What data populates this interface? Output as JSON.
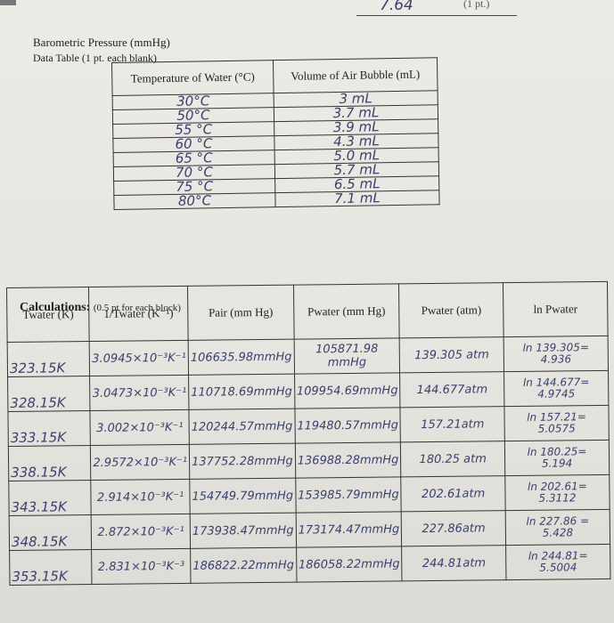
{
  "header": {
    "score": "7.64",
    "points": "(1 pt.)"
  },
  "section": {
    "title": "Barometric Pressure (mmHg)",
    "caption": "Data Table (1 pt. each blank)"
  },
  "data_table": {
    "headers": [
      "Temperature of Water (°C)",
      "Volume of Air Bubble (mL)"
    ],
    "rows": [
      [
        "30°C",
        "3 mL"
      ],
      [
        "50°C",
        "3.7 mL"
      ],
      [
        "55 °C",
        "3.9 mL"
      ],
      [
        "60 °C",
        "4.3 mL"
      ],
      [
        "65 °C",
        "5.0 mL"
      ],
      [
        "70 °C",
        "5.7 mL"
      ],
      [
        "75 °C",
        "6.5 mL"
      ],
      [
        "80°C",
        "7.1 mL"
      ]
    ]
  },
  "calculations": {
    "heading": "Calculations:",
    "note": "(0.5 pt for each block)",
    "headers": [
      "Twater (K)",
      "1/Twater (K⁻¹)",
      "Pair (mm Hg)",
      "Pwater (mm Hg)",
      "Pwater (atm)",
      "ln Pwater"
    ],
    "rows": [
      {
        "t": "323.15K",
        "inv_t": "3.0945×10⁻³K⁻¹",
        "p_air": "106635.98mmHg",
        "p_water_mmhg": "105871.98 mmHg",
        "p_water_atm": "139.305 atm",
        "ln_expr": "ln 139.305=",
        "ln_val": "4.936"
      },
      {
        "t": "328.15K",
        "inv_t": "3.0473×10⁻³K⁻¹",
        "p_air": "110718.69mmHg",
        "p_water_mmhg": "109954.69mmHg",
        "p_water_atm": "144.677atm",
        "ln_expr": "ln 144.677=",
        "ln_val": "4.9745"
      },
      {
        "t": "333.15K",
        "inv_t": "3.002×10⁻³K⁻¹",
        "p_air": "120244.57mmHg",
        "p_water_mmhg": "119480.57mmHg",
        "p_water_atm": "157.21atm",
        "ln_expr": "ln 157.21=",
        "ln_val": "5.0575"
      },
      {
        "t": "338.15K",
        "inv_t": "2.9572×10⁻³K⁻¹",
        "p_air": "137752.28mmHg",
        "p_water_mmhg": "136988.28mmHg",
        "p_water_atm": "180.25 atm",
        "ln_expr": "ln 180.25=",
        "ln_val": "5.194"
      },
      {
        "t": "343.15K",
        "inv_t": "2.914×10⁻³K⁻¹",
        "p_air": "154749.79mmHg",
        "p_water_mmhg": "153985.79mmHg",
        "p_water_atm": "202.61atm",
        "ln_expr": "ln 202.61=",
        "ln_val": "5.3112"
      },
      {
        "t": "348.15K",
        "inv_t": "2.872×10⁻³K⁻¹",
        "p_air": "173938.47mmHg",
        "p_water_mmhg": "173174.47mmHg",
        "p_water_atm": "227.86atm",
        "ln_expr": "ln 227.86 =",
        "ln_val": "5.428"
      },
      {
        "t": "353.15K",
        "inv_t": "2.831×10⁻³K⁻³",
        "p_air": "186822.22mmHg",
        "p_water_mmhg": "186058.22mmHg",
        "p_water_atm": "244.81atm",
        "ln_expr": "ln 244.81=",
        "ln_val": "5.5004"
      }
    ]
  }
}
